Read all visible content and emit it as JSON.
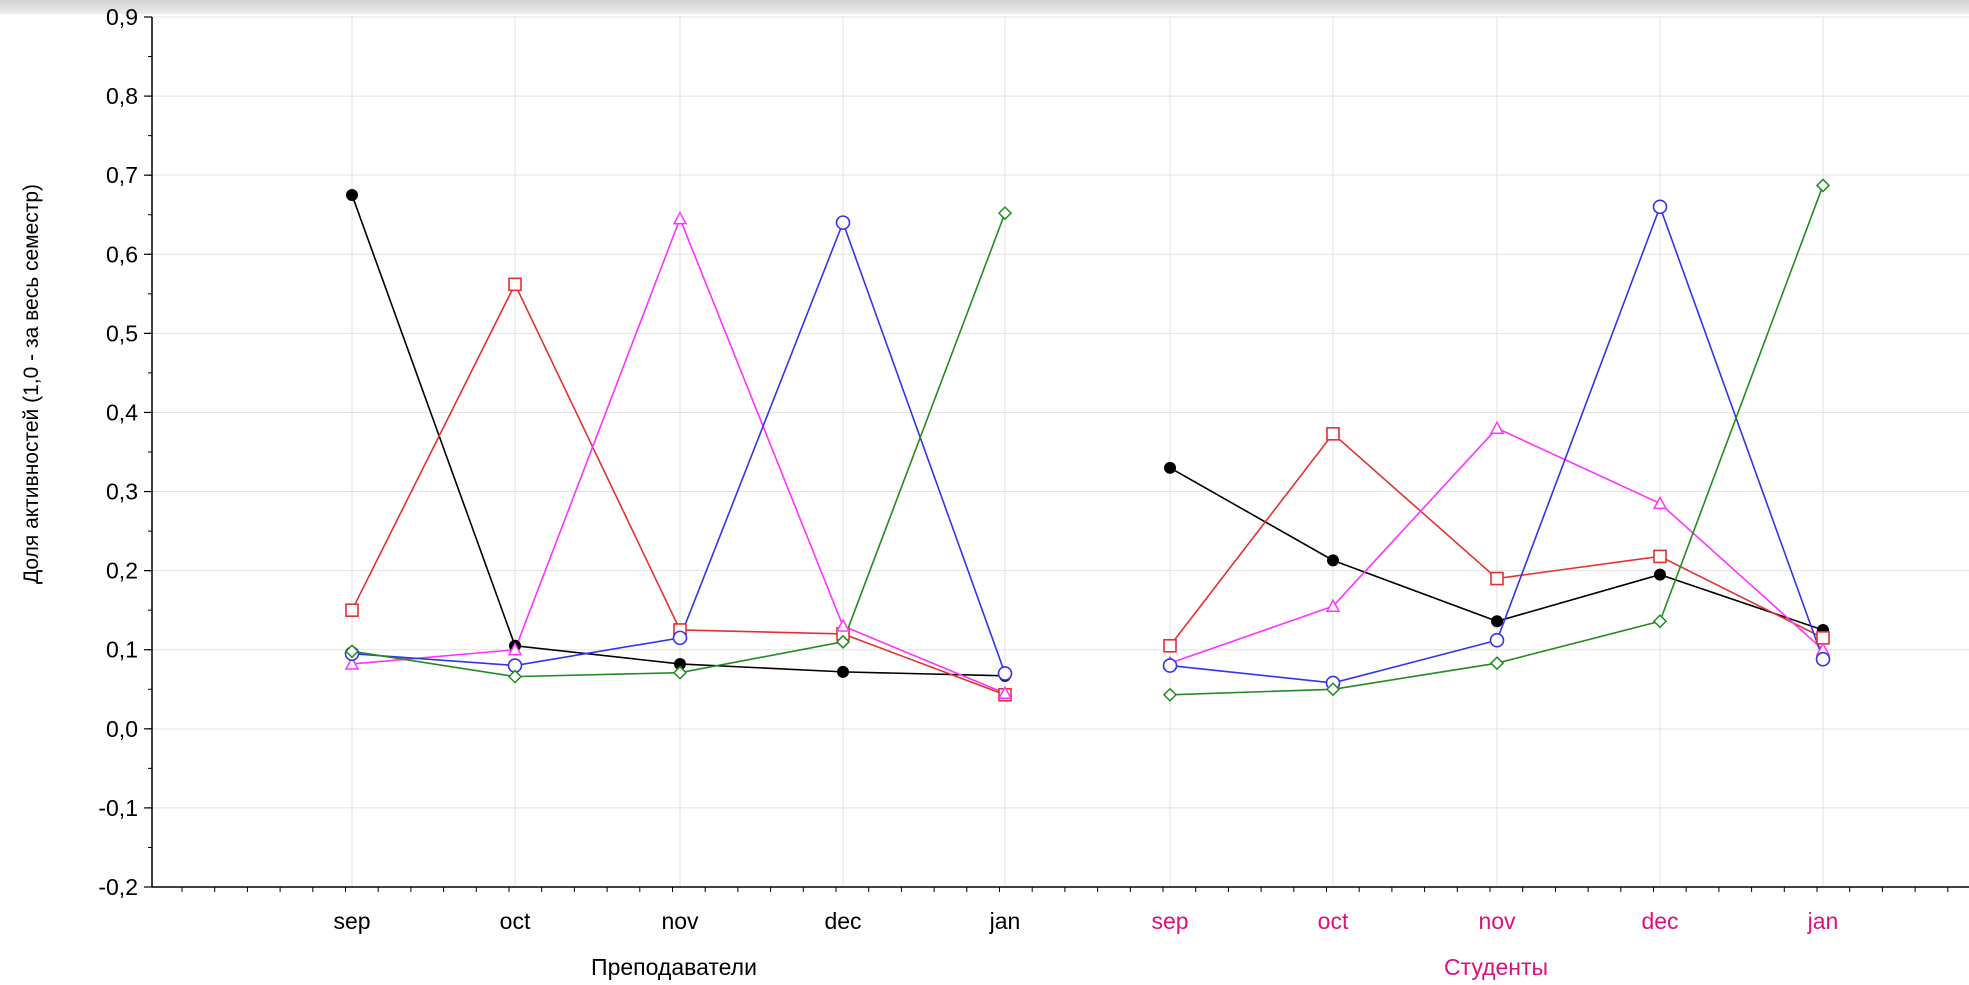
{
  "chart_data": {
    "type": "line",
    "ylabel": "Доля активностей (1,0 - за весь семестр)",
    "ylim": [
      -0.2,
      0.9
    ],
    "yticks": [
      "0,9",
      "0,8",
      "0,7",
      "0,6",
      "0,5",
      "0,4",
      "0,3",
      "0,2",
      "0,1",
      "0,0",
      "-0,1",
      "-0,2"
    ],
    "grid": true,
    "groups": [
      {
        "label": "Преподаватели",
        "label_color": "#000000",
        "categories": [
          "sep",
          "oct",
          "nov",
          "dec",
          "jan"
        ],
        "series": [
          {
            "color": "#000000",
            "marker": "dot",
            "values": [
              0.675,
              0.105,
              0.082,
              0.072,
              0.067
            ]
          },
          {
            "color": "#e53030",
            "marker": "square",
            "values": [
              0.15,
              0.562,
              0.125,
              0.12,
              0.043
            ]
          },
          {
            "color": "#ff33ff",
            "marker": "triangle",
            "values": [
              0.082,
              0.1,
              0.645,
              0.13,
              0.045
            ]
          },
          {
            "color": "#3333ee",
            "marker": "circle",
            "values": [
              0.095,
              0.08,
              0.115,
              0.64,
              0.07
            ]
          },
          {
            "color": "#228b22",
            "marker": "diamond",
            "values": [
              0.098,
              0.066,
              0.071,
              0.11,
              0.652
            ]
          }
        ]
      },
      {
        "label": "Студенты",
        "label_color": "#e0107a",
        "categories": [
          "sep",
          "oct",
          "nov",
          "dec",
          "jan"
        ],
        "series": [
          {
            "color": "#000000",
            "marker": "dot",
            "values": [
              0.33,
              0.213,
              0.136,
              0.195,
              0.125
            ]
          },
          {
            "color": "#e53030",
            "marker": "square",
            "values": [
              0.105,
              0.373,
              0.19,
              0.218,
              0.115
            ]
          },
          {
            "color": "#ff33ff",
            "marker": "triangle",
            "values": [
              0.083,
              0.155,
              0.38,
              0.285,
              0.1
            ]
          },
          {
            "color": "#3333ee",
            "marker": "circle",
            "values": [
              0.08,
              0.058,
              0.112,
              0.66,
              0.088
            ]
          },
          {
            "color": "#228b22",
            "marker": "diamond",
            "values": [
              0.043,
              0.05,
              0.083,
              0.136,
              0.687
            ]
          }
        ]
      }
    ]
  }
}
